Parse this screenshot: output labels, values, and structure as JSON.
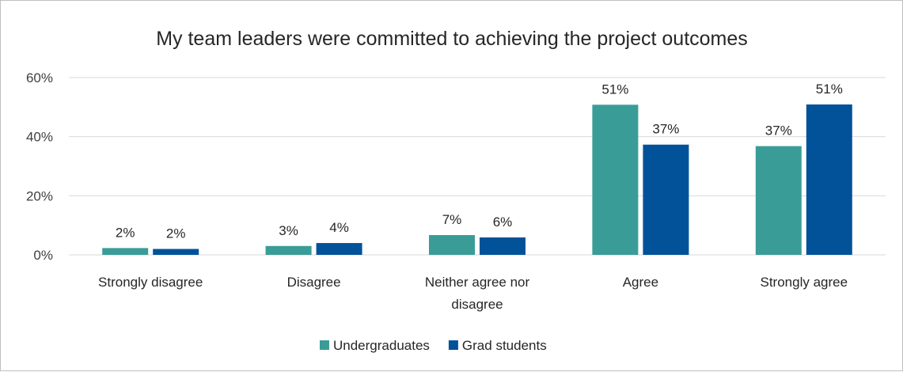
{
  "chart_data": {
    "type": "bar",
    "title": "My team leaders were committed to achieving the project outcomes",
    "categories": [
      [
        "Strongly disagree"
      ],
      [
        "Disagree"
      ],
      [
        "Neither agree nor",
        "disagree"
      ],
      [
        "Agree"
      ],
      [
        "Strongly agree"
      ]
    ],
    "series": [
      {
        "name": "Undergraduates",
        "color": "#3a9c97",
        "values": [
          2.3,
          3.0,
          6.7,
          50.8,
          36.8
        ],
        "labels": [
          "2%",
          "3%",
          "7%",
          "51%",
          "37%"
        ]
      },
      {
        "name": "Grad students",
        "color": "#02529a",
        "values": [
          2.0,
          4.0,
          5.9,
          37.3,
          50.9
        ],
        "labels": [
          "2%",
          "4%",
          "6%",
          "37%",
          "51%"
        ]
      }
    ],
    "ylim": [
      0,
      60
    ],
    "yticks": [
      {
        "value": 0,
        "label": "0%"
      },
      {
        "value": 20,
        "label": "20%"
      },
      {
        "value": 40,
        "label": "40%"
      },
      {
        "value": 60,
        "label": "60%"
      }
    ],
    "grid": true,
    "legend_position": "bottom",
    "xlabel": "",
    "ylabel": ""
  }
}
